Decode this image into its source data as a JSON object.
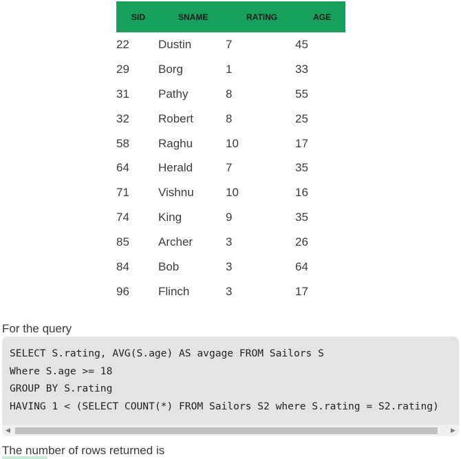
{
  "table": {
    "headers": {
      "sid": "SID",
      "sname": "SNAME",
      "rating": "RATING",
      "age": "AGE"
    },
    "rows": [
      {
        "sid": "22",
        "sname": "Dustin",
        "rating": "7",
        "age": "45"
      },
      {
        "sid": "29",
        "sname": "Borg",
        "rating": "1",
        "age": "33"
      },
      {
        "sid": "31",
        "sname": "Pathy",
        "rating": "8",
        "age": "55"
      },
      {
        "sid": "32",
        "sname": "Robert",
        "rating": "8",
        "age": "25"
      },
      {
        "sid": "58",
        "sname": "Raghu",
        "rating": "10",
        "age": "17"
      },
      {
        "sid": "64",
        "sname": "Herald",
        "rating": "7",
        "age": "35"
      },
      {
        "sid": "71",
        "sname": "Vishnu",
        "rating": "10",
        "age": "16"
      },
      {
        "sid": "74",
        "sname": "King",
        "rating": "9",
        "age": "35"
      },
      {
        "sid": "85",
        "sname": "Archer",
        "rating": "3",
        "age": "26"
      },
      {
        "sid": "84",
        "sname": "Bob",
        "rating": "3",
        "age": "64"
      },
      {
        "sid": "96",
        "sname": "Flinch",
        "rating": "3",
        "age": "17"
      }
    ]
  },
  "query_label": "For the query",
  "code": {
    "lines": [
      "SELECT S.rating, AVG(S.age) AS avgage FROM Sailors S",
      "Where S.age >= 18",
      "GROUP BY S.rating",
      "HAVING 1 < (SELECT COUNT(*) FROM Sailors S2 where S.rating = S2.rating)"
    ],
    "scroll_left_icon": "caret-left-icon",
    "scroll_right_icon": "caret-right-icon"
  },
  "result_text": "The number of rows returned is"
}
